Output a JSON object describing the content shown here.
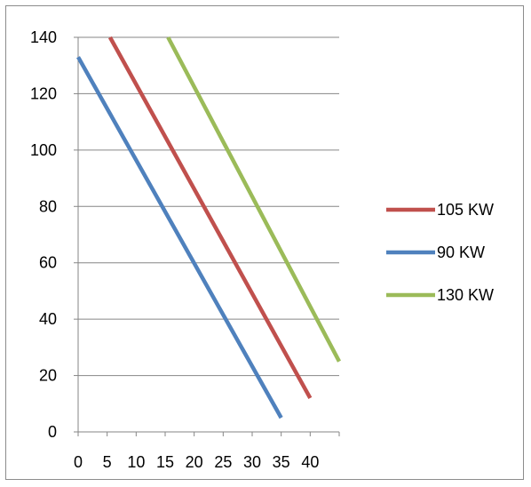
{
  "chart_data": {
    "type": "line",
    "title": "",
    "xlabel": "",
    "ylabel": "",
    "xlim": [
      0,
      45
    ],
    "ylim": [
      0,
      140
    ],
    "x_ticks": [
      "0",
      "5",
      "10",
      "15",
      "20",
      "25",
      "30",
      "35",
      "40"
    ],
    "y_ticks": [
      "0",
      "20",
      "40",
      "60",
      "80",
      "100",
      "120",
      "140"
    ],
    "grid": "horizontal",
    "legend_position": "right",
    "series": [
      {
        "name": "105 KW",
        "color": "#c0504d",
        "points": [
          [
            5.5,
            140
          ],
          [
            40,
            12
          ]
        ]
      },
      {
        "name": "90 KW",
        "color": "#4f81bd",
        "points": [
          [
            0,
            133
          ],
          [
            35,
            5
          ]
        ]
      },
      {
        "name": "130 KW",
        "color": "#9bbb59",
        "points": [
          [
            15.5,
            140
          ],
          [
            45,
            25
          ]
        ]
      }
    ]
  }
}
